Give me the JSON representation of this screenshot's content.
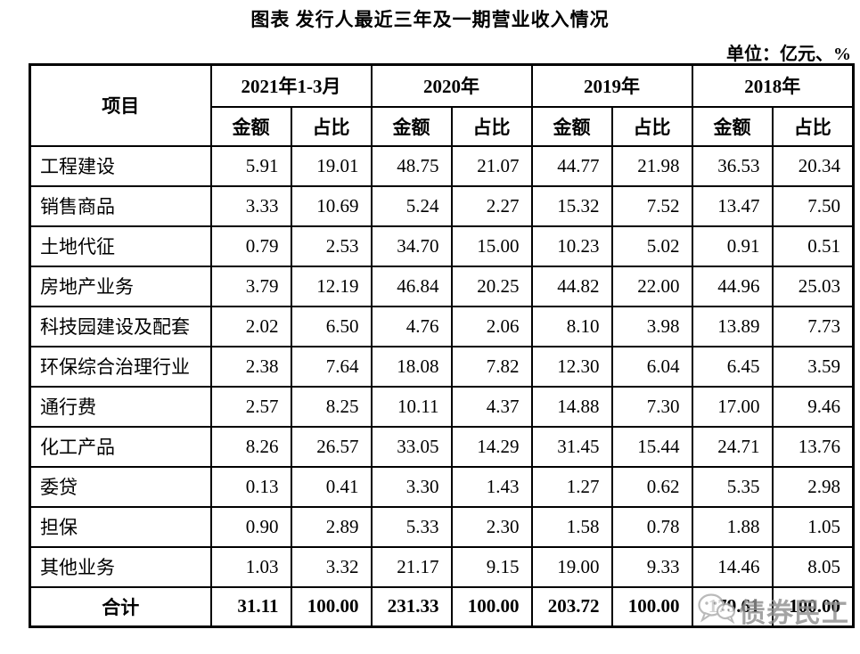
{
  "title": "图表 发行人最近三年及一期营业收入情况",
  "unit_label": "单位：亿元、%",
  "colors": {
    "text": "#000000",
    "border": "#000000",
    "watermark_gray": "#8f8f8f"
  },
  "watermark": {
    "icon": "wechat-icon",
    "text": "债券民工"
  },
  "table": {
    "item_header": "项目",
    "period_headers": [
      "2021年1-3月",
      "2020年",
      "2019年",
      "2018年"
    ],
    "sub_headers": [
      "金额",
      "占比"
    ],
    "rows": [
      {
        "item": "工程建设",
        "values": [
          "5.91",
          "19.01",
          "48.75",
          "21.07",
          "44.77",
          "21.98",
          "36.53",
          "20.34"
        ]
      },
      {
        "item": "销售商品",
        "values": [
          "3.33",
          "10.69",
          "5.24",
          "2.27",
          "15.32",
          "7.52",
          "13.47",
          "7.50"
        ]
      },
      {
        "item": "土地代征",
        "values": [
          "0.79",
          "2.53",
          "34.70",
          "15.00",
          "10.23",
          "5.02",
          "0.91",
          "0.51"
        ]
      },
      {
        "item": "房地产业务",
        "values": [
          "3.79",
          "12.19",
          "46.84",
          "20.25",
          "44.82",
          "22.00",
          "44.96",
          "25.03"
        ]
      },
      {
        "item": "科技园建设及配套",
        "values": [
          "2.02",
          "6.50",
          "4.76",
          "2.06",
          "8.10",
          "3.98",
          "13.89",
          "7.73"
        ]
      },
      {
        "item": "环保综合治理行业",
        "values": [
          "2.38",
          "7.64",
          "18.08",
          "7.82",
          "12.30",
          "6.04",
          "6.45",
          "3.59"
        ]
      },
      {
        "item": "通行费",
        "values": [
          "2.57",
          "8.25",
          "10.11",
          "4.37",
          "14.88",
          "7.30",
          "17.00",
          "9.46"
        ]
      },
      {
        "item": "化工产品",
        "values": [
          "8.26",
          "26.57",
          "33.05",
          "14.29",
          "31.45",
          "15.44",
          "24.71",
          "13.76"
        ]
      },
      {
        "item": "委贷",
        "values": [
          "0.13",
          "0.41",
          "3.30",
          "1.43",
          "1.27",
          "0.62",
          "5.35",
          "2.98"
        ]
      },
      {
        "item": "担保",
        "values": [
          "0.90",
          "2.89",
          "5.33",
          "2.30",
          "1.58",
          "0.78",
          "1.88",
          "1.05"
        ]
      },
      {
        "item": "其他业务",
        "values": [
          "1.03",
          "3.32",
          "21.17",
          "9.15",
          "19.00",
          "9.33",
          "14.46",
          "8.05"
        ]
      }
    ],
    "total_row": {
      "item": "合计",
      "values": [
        "31.11",
        "100.00",
        "231.33",
        "100.00",
        "203.72",
        "100.00",
        "179.61",
        "100.00"
      ]
    }
  }
}
